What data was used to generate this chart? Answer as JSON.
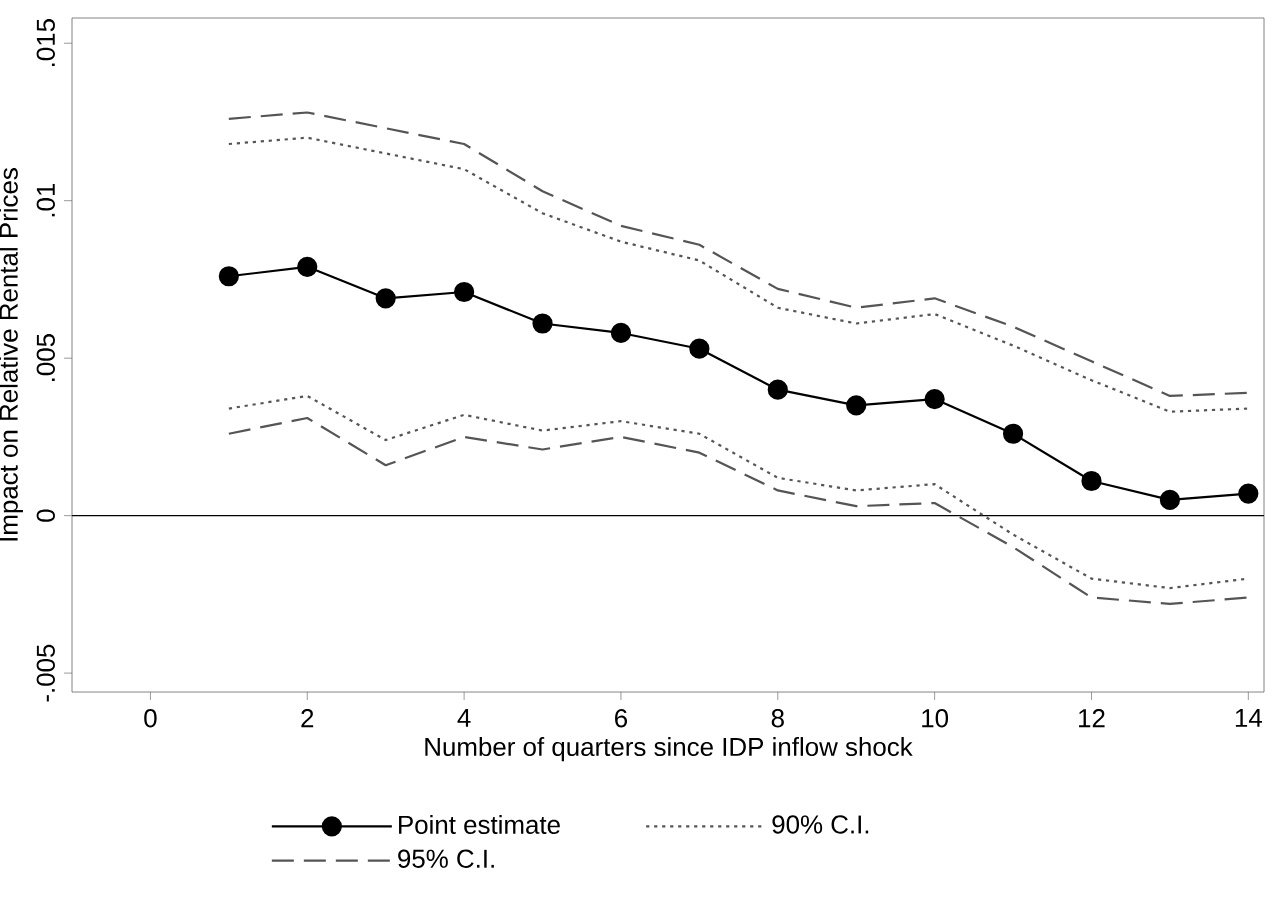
{
  "chart_data": {
    "type": "line",
    "xlabel": "Number of quarters since IDP inflow shock",
    "ylabel": "Impact on Relative Rental Prices",
    "x": [
      1,
      2,
      3,
      4,
      5,
      6,
      7,
      8,
      9,
      10,
      11,
      12,
      13,
      14
    ],
    "series": [
      {
        "name": "Point estimate",
        "color": "#000000",
        "marker": "circle",
        "line_style": "solid",
        "values": [
          0.0076,
          0.0079,
          0.0069,
          0.0071,
          0.0061,
          0.0058,
          0.0053,
          0.004,
          0.0035,
          0.0037,
          0.0026,
          0.0011,
          0.0005,
          0.0007
        ]
      },
      {
        "name": "90% C.I.",
        "color": "#555555",
        "marker": "none",
        "line_style": "dotted",
        "values": [
          0.0118,
          0.012,
          0.0115,
          0.011,
          0.0096,
          0.0087,
          0.0081,
          0.0066,
          0.0061,
          0.0064,
          0.0054,
          0.0043,
          0.0033,
          0.0034
        ]
      },
      {
        "color": "#555555",
        "marker": "none",
        "line_style": "dotted",
        "values": [
          0.0034,
          0.0038,
          0.0024,
          0.0032,
          0.0027,
          0.003,
          0.0026,
          0.0012,
          0.0008,
          0.001,
          -0.0006,
          -0.002,
          -0.0023,
          -0.002
        ]
      },
      {
        "name": "95% C.I.",
        "color": "#555555",
        "marker": "none",
        "line_style": "dashed",
        "values": [
          0.0126,
          0.0128,
          0.0123,
          0.0118,
          0.0103,
          0.0092,
          0.0086,
          0.0072,
          0.0066,
          0.0069,
          0.006,
          0.0049,
          0.0038,
          0.0039
        ]
      },
      {
        "color": "#555555",
        "marker": "none",
        "line_style": "dashed",
        "values": [
          0.0026,
          0.0031,
          0.0016,
          0.0025,
          0.0021,
          0.0025,
          0.002,
          0.0008,
          0.0003,
          0.0004,
          -0.001,
          -0.0026,
          -0.0028,
          -0.0026
        ]
      }
    ],
    "xlim": [
      -1,
      14.2
    ],
    "ylim": [
      -0.0056,
      0.0158
    ],
    "xticks": [
      0,
      2,
      4,
      6,
      8,
      10,
      12,
      14
    ],
    "yticks": [
      {
        "value": -0.005,
        "label": "-.005"
      },
      {
        "value": 0,
        "label": "0"
      },
      {
        "value": 0.005,
        "label": ".005"
      },
      {
        "value": 0.01,
        "label": ".01"
      },
      {
        "value": 0.015,
        "label": ".015"
      }
    ],
    "ref_lines": [
      {
        "axis": "y",
        "value": 0,
        "color": "#000000"
      }
    ],
    "grid": false,
    "legend": "bottom"
  }
}
